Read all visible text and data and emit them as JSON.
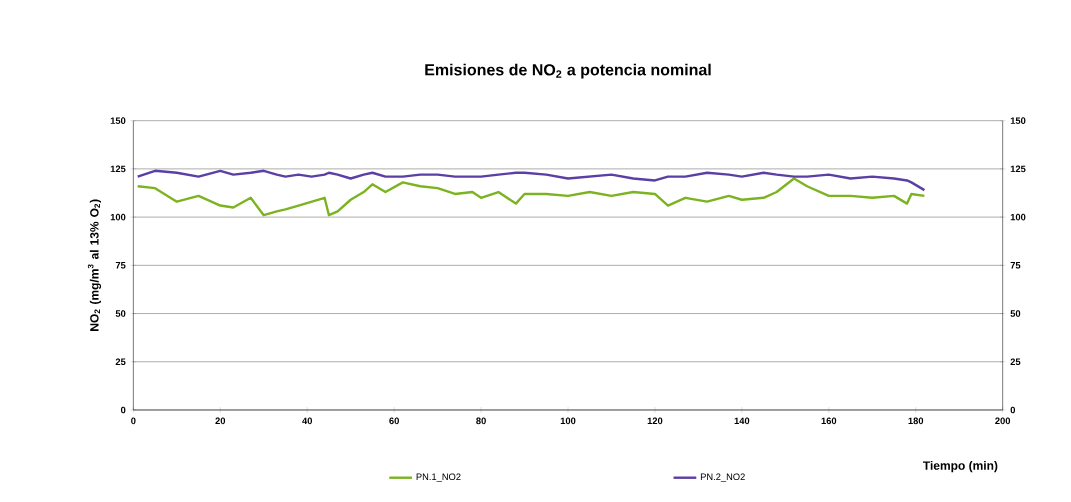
{
  "chart_data": {
    "type": "line",
    "title": "Emisiones de NO$_{2}$ a potencia nominal",
    "xlabel": "Tiempo (min)",
    "ylabel": "NO$_{2}$ (mg/m$^{3}$ al 13% O$_{2}$)",
    "x": [
      1,
      5,
      10,
      15,
      20,
      23,
      27,
      30,
      33,
      35,
      38,
      41,
      44,
      45,
      47,
      50,
      53,
      55,
      58,
      62,
      66,
      70,
      74,
      78,
      80,
      84,
      88,
      90,
      95,
      100,
      105,
      110,
      115,
      120,
      123,
      127,
      132,
      137,
      140,
      145,
      148,
      152,
      155,
      160,
      165,
      170,
      175,
      178,
      179,
      182
    ],
    "series": [
      {
        "name": "PN.1_NO2",
        "color": "#7cb321",
        "values": [
          116,
          115,
          108,
          111,
          106,
          105,
          110,
          101,
          103,
          104,
          106,
          108,
          110,
          101,
          103,
          109,
          113,
          117,
          113,
          118,
          116,
          115,
          112,
          113,
          110,
          113,
          107,
          112,
          112,
          111,
          113,
          111,
          113,
          112,
          106,
          110,
          108,
          111,
          109,
          110,
          113,
          120,
          116,
          111,
          111,
          110,
          111,
          107,
          112,
          111
        ]
      },
      {
        "name": "PN.2_NO2",
        "color": "#5b3fa5",
        "values": [
          121,
          124,
          123,
          121,
          124,
          122,
          123,
          124,
          122,
          121,
          122,
          121,
          122,
          123,
          122,
          120,
          122,
          123,
          121,
          121,
          122,
          122,
          121,
          121,
          121,
          122,
          123,
          123,
          122,
          120,
          121,
          122,
          120,
          119,
          121,
          121,
          123,
          122,
          121,
          123,
          122,
          121,
          121,
          122,
          120,
          121,
          120,
          119,
          118,
          114
        ]
      }
    ],
    "xlim": [
      0,
      200
    ],
    "xticks": [
      0,
      20,
      40,
      60,
      80,
      100,
      120,
      140,
      160,
      180,
      200
    ],
    "ylim": [
      0,
      150
    ],
    "yticks": [
      0,
      25,
      50,
      75,
      100,
      125,
      150
    ],
    "y2lim": [
      0,
      150
    ],
    "y2ticks": [
      0,
      25,
      50,
      75,
      100,
      125,
      150
    ],
    "grid": "y",
    "legend": "bottom",
    "marker": "none",
    "line_style": "solid"
  }
}
